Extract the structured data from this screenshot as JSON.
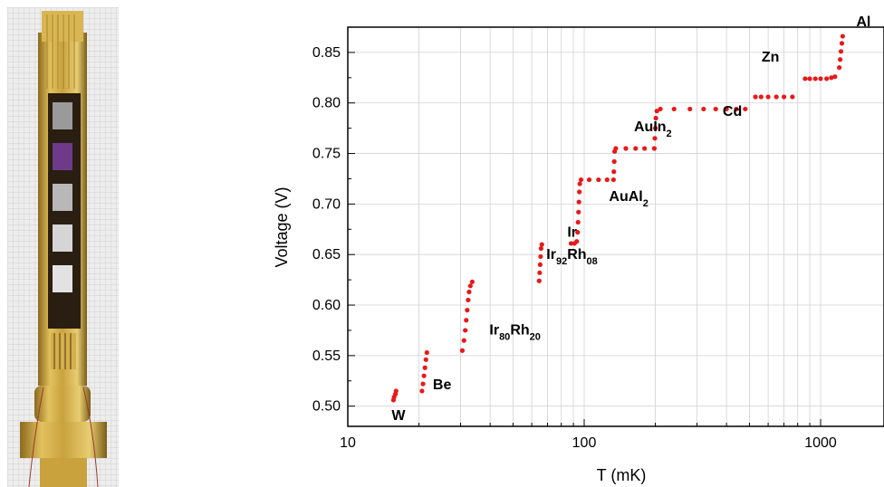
{
  "chart_data": {
    "type": "scatter",
    "xlabel": "T (mK)",
    "ylabel": "Voltage (V)",
    "xscale": "log",
    "xlim": [
      10,
      1300
    ],
    "ylim": [
      0.48,
      0.875
    ],
    "x_ticks": [
      "10",
      "100",
      "1000"
    ],
    "y_ticks": [
      "0.50",
      "0.55",
      "0.60",
      "0.65",
      "0.70",
      "0.75",
      "0.80",
      "0.85"
    ],
    "grid": true,
    "marker_color": "#e8191a",
    "transitions": [
      {
        "element": "W",
        "label_main": "W",
        "label_sub": "",
        "points": [
          [
            15.6,
            0.506
          ],
          [
            15.7,
            0.509
          ],
          [
            15.9,
            0.512
          ],
          [
            16.0,
            0.515
          ]
        ]
      },
      {
        "element": "Be",
        "label_main": "Be",
        "label_sub": "",
        "points": [
          [
            20.6,
            0.515
          ],
          [
            20.8,
            0.522
          ],
          [
            21.0,
            0.53
          ],
          [
            21.2,
            0.538
          ],
          [
            21.4,
            0.546
          ],
          [
            21.6,
            0.553
          ]
        ]
      },
      {
        "element": "Ir80Rh20",
        "label_main": "Ir",
        "label_sub": "80",
        "label_main2": "Rh",
        "label_sub2": "20",
        "points": [
          [
            30.5,
            0.555
          ],
          [
            31.0,
            0.565
          ],
          [
            31.4,
            0.575
          ],
          [
            31.7,
            0.585
          ],
          [
            32.0,
            0.595
          ],
          [
            32.3,
            0.605
          ],
          [
            32.6,
            0.613
          ],
          [
            33.0,
            0.619
          ],
          [
            33.6,
            0.623
          ]
        ]
      },
      {
        "element": "Ir92Rh08",
        "label_main": "Ir",
        "label_sub": "92",
        "label_main2": "Rh",
        "label_sub2": "08",
        "points": [
          [
            64.5,
            0.624
          ],
          [
            64.8,
            0.632
          ],
          [
            65.1,
            0.64
          ],
          [
            65.4,
            0.648
          ],
          [
            65.7,
            0.656
          ],
          [
            66.2,
            0.66
          ]
        ]
      },
      {
        "element": "Ir",
        "label_main": "Ir",
        "label_sub": "",
        "points": [
          [
            88,
            0.661
          ],
          [
            91,
            0.661
          ],
          [
            93,
            0.663
          ],
          [
            93.8,
            0.672
          ],
          [
            94.2,
            0.682
          ],
          [
            94.6,
            0.692
          ],
          [
            95,
            0.702
          ],
          [
            95.4,
            0.712
          ],
          [
            95.8,
            0.72
          ],
          [
            97,
            0.724
          ],
          [
            105,
            0.724
          ],
          [
            115,
            0.724
          ],
          [
            125,
            0.724
          ],
          [
            133,
            0.724
          ]
        ]
      },
      {
        "element": "AuAl2",
        "label_main": "AuAl",
        "label_sub": "2",
        "points": [
          [
            133.5,
            0.732
          ],
          [
            134,
            0.742
          ],
          [
            134.5,
            0.752
          ],
          [
            136,
            0.755
          ],
          [
            150,
            0.755
          ],
          [
            165,
            0.755
          ],
          [
            180,
            0.755
          ],
          [
            198,
            0.755
          ]
        ]
      },
      {
        "element": "AuIn2",
        "label_main": "AuIn",
        "label_sub": "2",
        "points": [
          [
            199,
            0.765
          ],
          [
            200,
            0.775
          ],
          [
            201,
            0.785
          ],
          [
            203,
            0.792
          ],
          [
            210,
            0.794
          ],
          [
            240,
            0.794
          ],
          [
            280,
            0.794
          ],
          [
            320,
            0.794
          ],
          [
            360,
            0.794
          ],
          [
            400,
            0.794
          ],
          [
            440,
            0.794
          ],
          [
            480,
            0.794
          ]
        ]
      },
      {
        "element": "Cd",
        "label_main": "Cd",
        "label_sub": "",
        "points": [
          [
            530,
            0.806
          ],
          [
            560,
            0.806
          ],
          [
            600,
            0.806
          ],
          [
            650,
            0.806
          ],
          [
            700,
            0.806
          ],
          [
            760,
            0.806
          ]
        ]
      },
      {
        "element": "Zn",
        "label_main": "Zn",
        "label_sub": "",
        "points": [
          [
            860,
            0.824
          ],
          [
            900,
            0.824
          ],
          [
            950,
            0.824
          ],
          [
            1000,
            0.824
          ],
          [
            1060,
            0.824
          ],
          [
            1110,
            0.825
          ],
          [
            1150,
            0.826
          ]
        ]
      },
      {
        "element": "Al",
        "label_main": "Al",
        "label_sub": "",
        "points": [
          [
            1200,
            0.835
          ],
          [
            1210,
            0.843
          ],
          [
            1220,
            0.851
          ],
          [
            1230,
            0.859
          ],
          [
            1240,
            0.866
          ]
        ]
      }
    ]
  }
}
